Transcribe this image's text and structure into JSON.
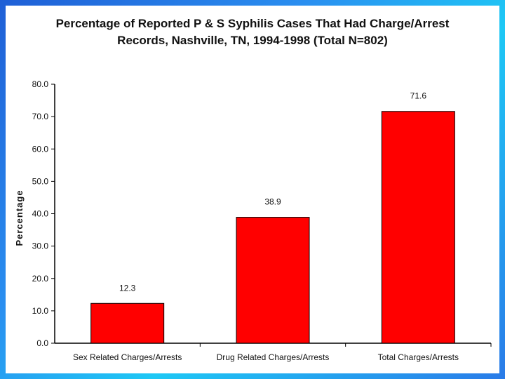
{
  "chart_data": {
    "type": "bar",
    "title_line1": "Percentage of Reported P & S Syphilis Cases That Had Charge/Arrest",
    "title_line2": "Records, Nashville, TN, 1994-1998 (Total N=802)",
    "ylabel": "Percentage",
    "xlabel": "",
    "categories": [
      "Sex Related Charges/Arrests",
      "Drug Related Charges/Arrests",
      "Total Charges/Arrests"
    ],
    "values": [
      12.3,
      38.9,
      71.6
    ],
    "value_labels": [
      "12.3",
      "38.9",
      "71.6"
    ],
    "ylim": [
      0,
      80
    ],
    "yticks": [
      "0.0",
      "10.0",
      "20.0",
      "30.0",
      "40.0",
      "50.0",
      "60.0",
      "70.0",
      "80.0"
    ],
    "bar_color": "#ff0000",
    "bar_edge_color": "#000000",
    "grid": false,
    "legend": "none"
  }
}
